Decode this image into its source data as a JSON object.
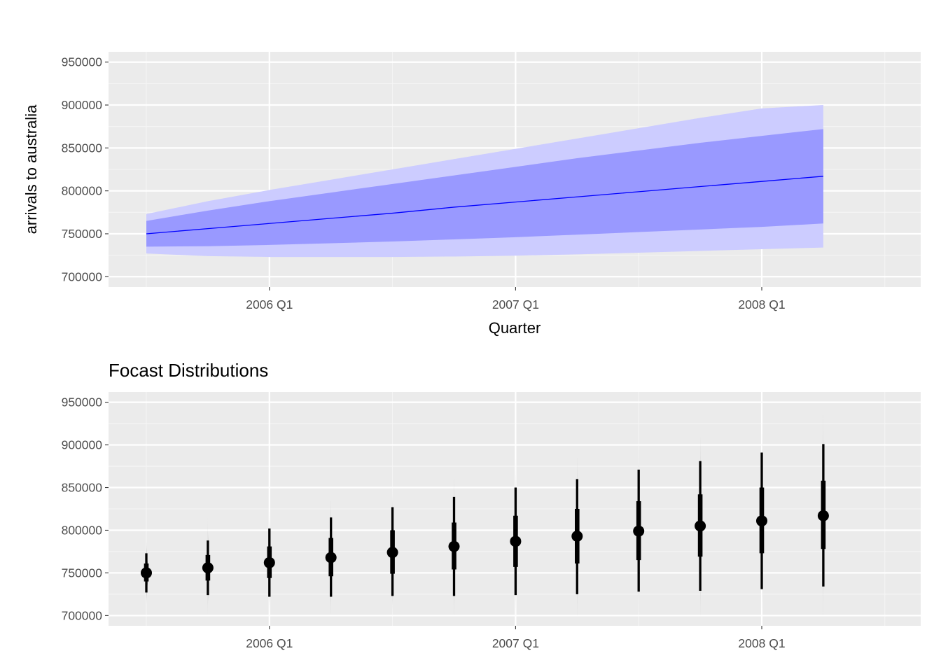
{
  "colors": {
    "panel_bg": "#ebebeb",
    "grid_major": "#ffffff",
    "grid_minor": "#f5f5f5",
    "band_95": "#ccccff",
    "band_80": "#9999ff",
    "mean_line": "#0000ff",
    "slab": "#a6a6a6",
    "interval": "#000000"
  },
  "chart_data": [
    {
      "type": "area",
      "title": "",
      "xlabel": "Quarter",
      "ylabel": "arrivals to australia",
      "x_ticks": [
        "2006 Q1",
        "2007 Q1",
        "2008 Q1"
      ],
      "y_ticks": [
        "700000",
        "750000",
        "800000",
        "850000",
        "900000",
        "950000"
      ],
      "ylim": [
        688000,
        962000
      ],
      "x": [
        "2005 Q3",
        "2005 Q4",
        "2006 Q1",
        "2006 Q2",
        "2006 Q3",
        "2006 Q4",
        "2007 Q1",
        "2007 Q2",
        "2007 Q3",
        "2007 Q4",
        "2008 Q1",
        "2008 Q2"
      ],
      "series": [
        {
          "values": [
            750000,
            756000,
            762000,
            768000,
            774000,
            781000,
            787000,
            793000,
            799000,
            805000,
            811000,
            817000
          ]
        }
      ],
      "bands": [
        {
          "level": "95%",
          "lower": [
            727000,
            724000,
            723000,
            723000,
            723000,
            723500,
            724500,
            726000,
            728000,
            730000,
            732000,
            734000
          ],
          "upper": [
            773000,
            788000,
            801000,
            813000,
            825000,
            837000,
            849000,
            861000,
            873000,
            885000,
            896000,
            900000
          ]
        },
        {
          "level": "80%",
          "lower": [
            735000,
            735500,
            737000,
            739000,
            741000,
            743500,
            746000,
            749000,
            752000,
            755000,
            758000,
            762000
          ],
          "upper": [
            765000,
            777000,
            788000,
            798000,
            808000,
            818000,
            828000,
            838000,
            847000,
            856000,
            864000,
            872000
          ]
        }
      ]
    },
    {
      "type": "violin",
      "title": "Focast Distributions",
      "xlabel": "",
      "ylabel": "",
      "x_ticks": [
        "2006 Q1",
        "2007 Q1",
        "2008 Q1"
      ],
      "y_ticks": [
        "700000",
        "750000",
        "800000",
        "850000",
        "900000",
        "950000"
      ],
      "ylim": [
        688000,
        962000
      ],
      "x": [
        "2005 Q3",
        "2005 Q4",
        "2006 Q1",
        "2006 Q2",
        "2006 Q3",
        "2006 Q4",
        "2007 Q1",
        "2007 Q2",
        "2007 Q3",
        "2007 Q4",
        "2008 Q1",
        "2008 Q2"
      ],
      "median": [
        750000,
        756000,
        762000,
        768000,
        774000,
        781000,
        787000,
        793000,
        799000,
        805000,
        811000,
        817000
      ],
      "q66_lower": [
        740000,
        741000,
        744000,
        746000,
        749000,
        754000,
        757000,
        761000,
        765000,
        769000,
        773000,
        778000
      ],
      "q66_upper": [
        761000,
        771000,
        781000,
        791000,
        800000,
        809000,
        817000,
        825000,
        834000,
        842000,
        850000,
        858000
      ],
      "q95_lower": [
        727000,
        724000,
        722000,
        722000,
        723000,
        723000,
        724000,
        725000,
        728000,
        729000,
        731000,
        734000
      ],
      "q95_upper": [
        773000,
        788000,
        802000,
        815000,
        827000,
        839000,
        850000,
        860000,
        871000,
        881000,
        891000,
        901000
      ],
      "slab_min": [
        714000,
        700000,
        700000,
        702000,
        700000,
        701000,
        700000,
        700000,
        700000,
        700000,
        700000,
        700000
      ],
      "slab_max": [
        787000,
        815000,
        822000,
        834000,
        855000,
        860000,
        883000,
        885000,
        918000,
        909000,
        948000,
        935000
      ]
    }
  ]
}
